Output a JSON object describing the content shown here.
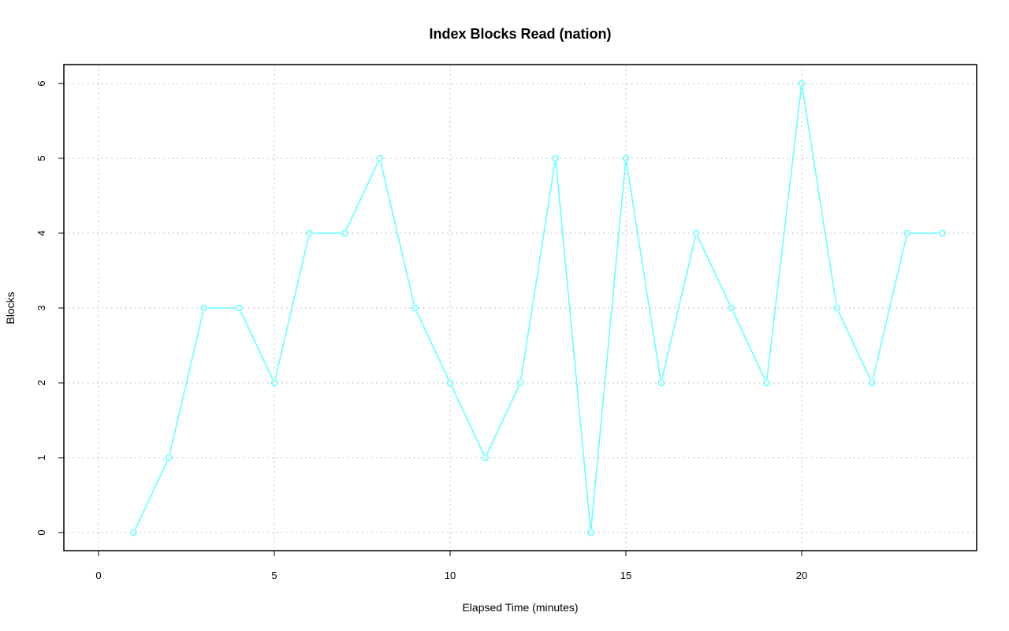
{
  "chart_data": {
    "type": "line",
    "title": "Index Blocks Read (nation)",
    "xlabel": "Elapsed Time (minutes)",
    "ylabel": "Blocks",
    "xlim": [
      0,
      25
    ],
    "ylim": [
      0,
      6
    ],
    "x_ticks": [
      0,
      5,
      10,
      15,
      20
    ],
    "y_ticks": [
      0,
      1,
      2,
      3,
      4,
      5,
      6
    ],
    "grid": true,
    "legend": "none",
    "series": [
      {
        "color": "#66ffff",
        "marker": "circle",
        "x": [
          1,
          2,
          3,
          4,
          5,
          6,
          7,
          8,
          9,
          10,
          11,
          12,
          13,
          14,
          15,
          16,
          17,
          18,
          19,
          20,
          21,
          22,
          23,
          24
        ],
        "y": [
          0,
          1,
          3,
          3,
          2,
          4,
          4,
          5,
          3,
          2,
          1,
          2,
          5,
          0,
          5,
          2,
          4,
          3,
          2,
          6,
          3,
          2,
          4,
          4
        ]
      }
    ]
  }
}
